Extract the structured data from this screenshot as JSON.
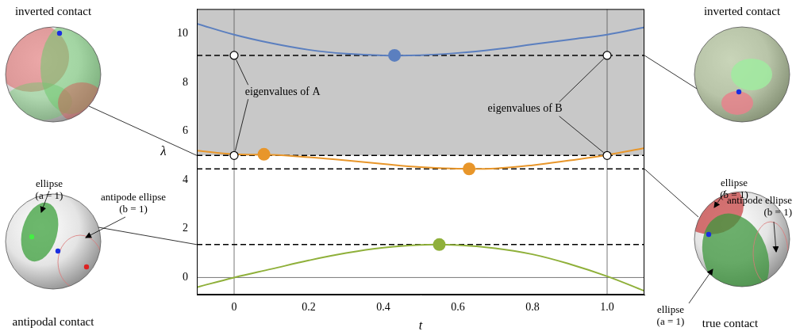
{
  "chart_data": {
    "type": "line",
    "x_label": "t",
    "y_label": "λ",
    "xlim": [
      -0.1,
      1.1
    ],
    "ylim": [
      -0.7,
      11
    ],
    "xticks": [
      0,
      0.2,
      0.4,
      0.6,
      0.8,
      {
        "value": 1,
        "label": "1.0"
      }
    ],
    "yticks": [
      0,
      2,
      4,
      6,
      8,
      10
    ],
    "grid": false,
    "x": [
      -0.1,
      0,
      0.1,
      0.2,
      0.3,
      0.4,
      0.5,
      0.6,
      0.7,
      0.8,
      0.9,
      1.0,
      1.1
    ],
    "series": [
      {
        "color": "#5b7fbf",
        "values": [
          10.4,
          9.95,
          9.6,
          9.33,
          9.17,
          9.1,
          9.11,
          9.2,
          9.35,
          9.55,
          9.75,
          9.95,
          10.25
        ]
      },
      {
        "color": "#e8962a",
        "values": [
          5.2,
          5.05,
          5.03,
          4.93,
          4.8,
          4.65,
          4.52,
          4.46,
          4.47,
          4.6,
          4.8,
          5.02,
          5.3
        ]
      },
      {
        "color": "#8fb03a",
        "values": [
          -0.4,
          0,
          0.35,
          0.7,
          1.0,
          1.22,
          1.34,
          1.33,
          1.2,
          0.95,
          0.55,
          0.05,
          -0.55
        ]
      }
    ],
    "points": [
      {
        "x": 0.43,
        "y": 9.1,
        "color": "#5b7fbf",
        "marker": "filled_circle"
      },
      {
        "x": 0.08,
        "y": 5.05,
        "color": "#e8962a",
        "marker": "filled_circle"
      },
      {
        "x": 0.63,
        "y": 4.45,
        "color": "#e8962a",
        "marker": "filled_circle"
      },
      {
        "x": 0.55,
        "y": 1.35,
        "color": "#8fb03a",
        "marker": "filled_circle"
      },
      {
        "x": 0,
        "y": 9.1,
        "color": "#000000",
        "marker": "open_circle"
      },
      {
        "x": 0,
        "y": 5.0,
        "color": "#000000",
        "marker": "open_circle"
      },
      {
        "x": 1,
        "y": 9.1,
        "color": "#000000",
        "marker": "open_circle"
      },
      {
        "x": 1,
        "y": 5.0,
        "color": "#000000",
        "marker": "open_circle"
      }
    ],
    "reference_lines": [
      {
        "y": 9.1,
        "line_style": "dashed"
      },
      {
        "y": 5.0,
        "line_style": "dashed"
      },
      {
        "y": 4.45,
        "line_style": "dashed"
      },
      {
        "y": 1.35,
        "line_style": "dashed"
      }
    ],
    "axis_lines": {
      "x": [
        0,
        1
      ],
      "y": [
        0
      ]
    },
    "shaded_band": {
      "from": 5.0,
      "to": 11,
      "color": "#c8c8c8"
    },
    "annotations": [
      {
        "text": "eigenvalues of A",
        "x": 0.13,
        "y": 7.6,
        "points_to": [
          [
            0,
            9.1
          ],
          [
            0,
            5.0
          ]
        ]
      },
      {
        "text": "eigenvalues of B",
        "x": 0.78,
        "y": 6.9,
        "points_to": [
          [
            1,
            9.1
          ],
          [
            1,
            5.0
          ]
        ]
      }
    ],
    "panels": [
      {
        "caption": "inverted contact",
        "labels": [],
        "points_to": [
          -0.1,
          5.0
        ]
      },
      {
        "caption": "antipodal contact",
        "labels": [
          "ellipse (a = 1)",
          "antipode ellipse (b = 1)"
        ],
        "points_to": [
          -0.1,
          1.35
        ]
      },
      {
        "caption": "inverted contact",
        "labels": [],
        "points_to": [
          1.1,
          9.1
        ]
      },
      {
        "caption": "true contact",
        "labels": [
          "ellipse (b = 1)",
          "antipode ellipse (b = 1)",
          "ellipse (a = 1)"
        ],
        "points_to": [
          1.1,
          4.45
        ]
      }
    ]
  }
}
